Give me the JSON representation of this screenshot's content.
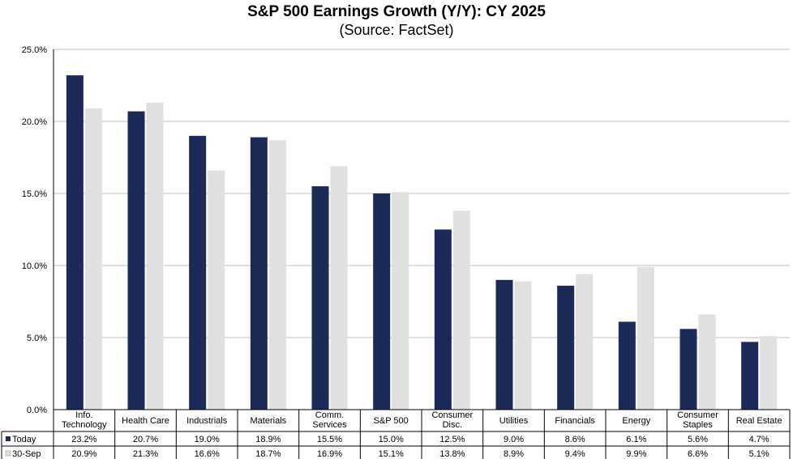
{
  "chart_data": {
    "type": "bar",
    "title": "S&P 500 Earnings Growth (Y/Y): CY 2025",
    "subtitle": "(Source: FactSet)",
    "categories": [
      "Info. Technology",
      "Health Care",
      "Industrials",
      "Materials",
      "Comm. Services",
      "S&P 500",
      "Consumer Disc.",
      "Utilities",
      "Financials",
      "Energy",
      "Consumer Staples",
      "Real Estate"
    ],
    "category_lines": [
      [
        "Info.",
        "Technology"
      ],
      [
        "Health Care"
      ],
      [
        "Industrials"
      ],
      [
        "Materials"
      ],
      [
        "Comm.",
        "Services"
      ],
      [
        "S&P 500"
      ],
      [
        "Consumer",
        "Disc."
      ],
      [
        "Utilities"
      ],
      [
        "Financials"
      ],
      [
        "Energy"
      ],
      [
        "Consumer",
        "Staples"
      ],
      [
        "Real Estate"
      ]
    ],
    "series": [
      {
        "name": "Today",
        "color": "#1b2a56",
        "values": [
          23.2,
          20.7,
          19.0,
          18.9,
          15.5,
          15.0,
          12.5,
          9.0,
          8.6,
          6.1,
          5.6,
          4.7
        ],
        "labels": [
          "23.2%",
          "20.7%",
          "19.0%",
          "18.9%",
          "15.5%",
          "15.0%",
          "12.5%",
          "9.0%",
          "8.6%",
          "6.1%",
          "5.6%",
          "4.7%"
        ]
      },
      {
        "name": "30-Sep",
        "color": "#e0e0e0",
        "values": [
          20.9,
          21.3,
          16.6,
          18.7,
          16.9,
          15.1,
          13.8,
          8.9,
          9.4,
          9.9,
          6.6,
          5.1
        ],
        "labels": [
          "20.9%",
          "21.3%",
          "16.6%",
          "18.7%",
          "16.9%",
          "15.1%",
          "13.8%",
          "8.9%",
          "9.4%",
          "9.9%",
          "6.6%",
          "5.1%"
        ]
      }
    ],
    "ylim": [
      0,
      25
    ],
    "yticks": [
      "0.0%",
      "5.0%",
      "10.0%",
      "15.0%",
      "20.0%",
      "25.0%"
    ],
    "ytick_values": [
      0,
      5,
      10,
      15,
      20,
      25
    ],
    "grid": true,
    "legend": "data-table"
  }
}
